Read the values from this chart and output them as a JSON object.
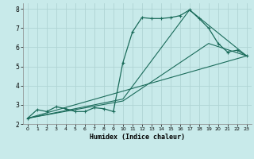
{
  "xlabel": "Humidex (Indice chaleur)",
  "bg_color": "#c8eaea",
  "line_color": "#1a6b5a",
  "grid_color": "#b0d4d4",
  "xlim": [
    -0.5,
    23.5
  ],
  "ylim": [
    2.0,
    8.3
  ],
  "yticks": [
    2,
    3,
    4,
    5,
    6,
    7,
    8
  ],
  "xticks": [
    0,
    1,
    2,
    3,
    4,
    5,
    6,
    7,
    8,
    9,
    10,
    11,
    12,
    13,
    14,
    15,
    16,
    17,
    18,
    19,
    20,
    21,
    22,
    23
  ],
  "line1_x": [
    0,
    1,
    2,
    3,
    4,
    5,
    6,
    7,
    8,
    9,
    10,
    11,
    12,
    13,
    14,
    15,
    16,
    17,
    18,
    19,
    20,
    21,
    22,
    23
  ],
  "line1_y": [
    2.3,
    2.75,
    2.65,
    2.9,
    2.8,
    2.65,
    2.65,
    2.85,
    2.8,
    2.65,
    5.2,
    6.8,
    7.55,
    7.5,
    7.5,
    7.55,
    7.65,
    7.95,
    7.5,
    7.0,
    6.2,
    5.75,
    5.85,
    5.55
  ],
  "line2_x": [
    0,
    23
  ],
  "line2_y": [
    2.3,
    5.55
  ],
  "line3_x": [
    0,
    10,
    19,
    23
  ],
  "line3_y": [
    2.3,
    3.2,
    6.2,
    5.55
  ],
  "line4_x": [
    0,
    10,
    17,
    23
  ],
  "line4_y": [
    2.3,
    3.3,
    7.95,
    5.55
  ],
  "marker_size": 2.5
}
